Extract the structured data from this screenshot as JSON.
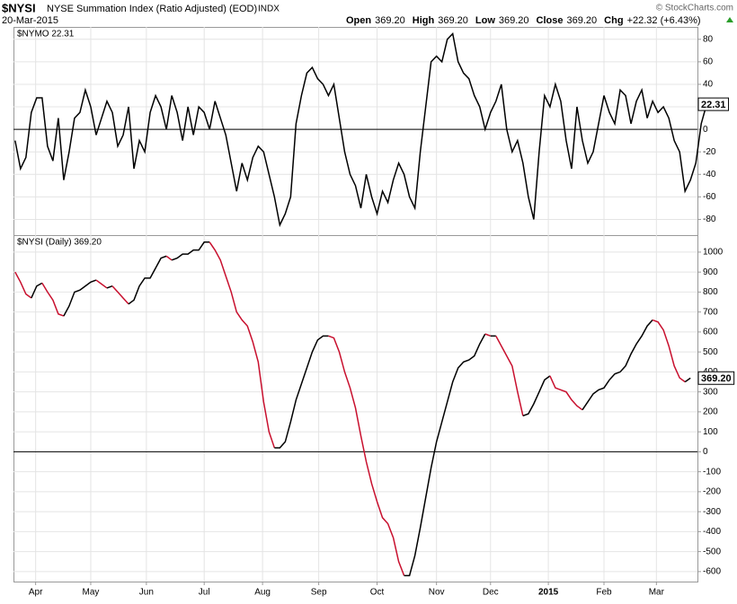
{
  "header": {
    "symbol": "$NYSI",
    "description": "NYSE Summation Index (Ratio Adjusted) (EOD)",
    "exchange": "INDX",
    "date": "20-Mar-2015",
    "stats": [
      {
        "label": "Open",
        "value": "369.20"
      },
      {
        "label": "High",
        "value": "369.20"
      },
      {
        "label": "Low",
        "value": "369.20"
      },
      {
        "label": "Close",
        "value": "369.20"
      },
      {
        "label": "Chg",
        "value": "+22.32 (+6.43%)"
      }
    ],
    "credit": "© StockCharts.com"
  },
  "chart_data": [
    {
      "type": "line",
      "label": "$NYMO 22.31",
      "color": "#000000",
      "grid": true,
      "hline": 0,
      "xlim": [
        -0.3,
        126.3
      ],
      "ylim": [
        -94,
        91
      ],
      "yticks": [
        -80,
        -60,
        -40,
        -20,
        0,
        20,
        40,
        60,
        80
      ],
      "xticks": [
        {
          "value": 3.8,
          "label": "Apr"
        },
        {
          "value": 14,
          "label": "May"
        },
        {
          "value": 24.3,
          "label": "Jun"
        },
        {
          "value": 35,
          "label": "Jul"
        },
        {
          "value": 45.8,
          "label": "Aug"
        },
        {
          "value": 56.2,
          "label": "Sep"
        },
        {
          "value": 67,
          "label": "Oct"
        },
        {
          "value": 78,
          "label": "Nov"
        },
        {
          "value": 88,
          "label": "Dec"
        },
        {
          "value": 98.7,
          "label": "2015"
        },
        {
          "value": 109,
          "label": "Feb"
        },
        {
          "value": 118.7,
          "label": "Mar"
        }
      ],
      "values": [
        -10,
        -35,
        -25,
        15,
        28,
        28,
        -15,
        -28,
        10,
        -45,
        -20,
        10,
        15,
        35,
        20,
        -5,
        10,
        25,
        15,
        -15,
        -5,
        20,
        -35,
        -10,
        -20,
        15,
        30,
        20,
        0,
        30,
        15,
        -10,
        20,
        -5,
        20,
        15,
        0,
        25,
        10,
        -5,
        -30,
        -55,
        -30,
        -45,
        -25,
        -15,
        -20,
        -40,
        -60,
        -85,
        -75,
        -60,
        5,
        30,
        50,
        55,
        45,
        40,
        30,
        40,
        10,
        -20,
        -40,
        -50,
        -70,
        -40,
        -60,
        -75,
        -55,
        -65,
        -45,
        -30,
        -40,
        -60,
        -70,
        -20,
        20,
        60,
        65,
        60,
        80,
        85,
        60,
        50,
        45,
        30,
        20,
        0,
        15,
        25,
        40,
        0,
        -20,
        -10,
        -30,
        -60,
        -80,
        -20,
        30,
        20,
        40,
        25,
        -10,
        -35,
        20,
        -10,
        -30,
        -20,
        5,
        30,
        15,
        5,
        35,
        30,
        5,
        25,
        35,
        10,
        25,
        15,
        20,
        10,
        -10,
        -20,
        -55,
        -45,
        -30,
        5,
        22.31
      ],
      "last_label": "22.31"
    },
    {
      "type": "line",
      "label": "$NYSI (Daily) 369.20",
      "color_up": "#000000",
      "color_down": "#c8102e",
      "grid": true,
      "hline": 0,
      "xlim": [
        -0.3,
        126.3
      ],
      "ylim": [
        -650,
        1085
      ],
      "yticks": [
        -600,
        -500,
        -400,
        -300,
        -200,
        -100,
        0,
        100,
        200,
        300,
        400,
        500,
        600,
        700,
        800,
        900,
        1000
      ],
      "xticks": [
        {
          "value": 3.8,
          "label": "Apr"
        },
        {
          "value": 14,
          "label": "May"
        },
        {
          "value": 24.3,
          "label": "Jun"
        },
        {
          "value": 35,
          "label": "Jul"
        },
        {
          "value": 45.8,
          "label": "Aug"
        },
        {
          "value": 56.2,
          "label": "Sep"
        },
        {
          "value": 67,
          "label": "Oct"
        },
        {
          "value": 78,
          "label": "Nov"
        },
        {
          "value": 88,
          "label": "Dec"
        },
        {
          "value": 98.7,
          "label": "2015"
        },
        {
          "value": 109,
          "label": "Feb"
        },
        {
          "value": 118.7,
          "label": "Mar"
        }
      ],
      "values": [
        900,
        850,
        790,
        770,
        830,
        845,
        800,
        760,
        690,
        680,
        730,
        800,
        810,
        830,
        850,
        860,
        840,
        820,
        830,
        800,
        770,
        740,
        760,
        830,
        870,
        870,
        920,
        970,
        980,
        960,
        970,
        990,
        990,
        1010,
        1010,
        1050,
        1050,
        1010,
        960,
        880,
        800,
        700,
        660,
        630,
        550,
        450,
        250,
        100,
        20,
        20,
        50,
        150,
        260,
        340,
        420,
        500,
        560,
        580,
        580,
        570,
        500,
        400,
        320,
        220,
        80,
        -50,
        -160,
        -250,
        -330,
        -360,
        -430,
        -550,
        -620,
        -620,
        -520,
        -380,
        -230,
        -80,
        50,
        150,
        250,
        350,
        420,
        450,
        460,
        480,
        540,
        590,
        580,
        580,
        530,
        480,
        430,
        300,
        180,
        190,
        240,
        300,
        360,
        380,
        320,
        310,
        300,
        260,
        230,
        210,
        250,
        290,
        310,
        320,
        360,
        390,
        400,
        430,
        490,
        540,
        580,
        630,
        660,
        650,
        610,
        530,
        430,
        370,
        350,
        369.2
      ],
      "last_label": "369.20"
    }
  ]
}
